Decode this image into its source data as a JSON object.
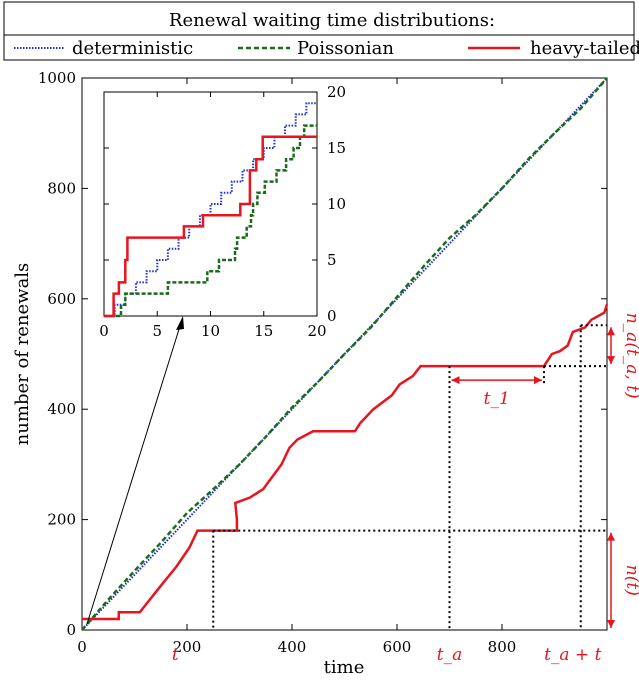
{
  "chart_data": {
    "type": "line",
    "legend": {
      "title": "Renewal waiting time distributions:",
      "placement": "top",
      "entries": [
        {
          "label": "deterministic",
          "color": "#1c2fd6",
          "style": "dotted"
        },
        {
          "label": "Poissonian",
          "color": "#1a6b1a",
          "style": "dashed"
        },
        {
          "label": "heavy-tailed",
          "color": "#e8141e",
          "style": "solid"
        }
      ]
    },
    "main": {
      "xlabel": "time",
      "ylabel": "number of renewals",
      "xlim": [
        0,
        1000
      ],
      "ylim": [
        0,
        1000
      ],
      "xticks": [
        0,
        200,
        400,
        600,
        800
      ],
      "yticks": [
        0,
        200,
        400,
        600,
        800,
        1000
      ],
      "grid": false,
      "series": [
        {
          "name": "deterministic",
          "x": [
            0,
            1000
          ],
          "y": [
            0,
            1000
          ]
        },
        {
          "name": "Poissonian",
          "x": [
            0,
            50,
            100,
            150,
            200,
            250,
            300,
            350,
            400,
            450,
            500,
            550,
            600,
            650,
            700,
            750,
            800,
            850,
            900,
            950,
            1000
          ],
          "y": [
            0,
            55,
            107,
            158,
            212,
            255,
            300,
            350,
            403,
            450,
            500,
            548,
            603,
            658,
            710,
            752,
            800,
            853,
            900,
            945,
            1000
          ]
        },
        {
          "name": "heavy-tailed",
          "steps": [
            [
              0,
              20
            ],
            [
              70,
              20
            ],
            [
              70,
              32
            ],
            [
              110,
              32
            ],
            [
              125,
              50
            ],
            [
              150,
              80
            ],
            [
              180,
              115
            ],
            [
              205,
              150
            ],
            [
              220,
              180
            ],
            [
              295,
              180
            ],
            [
              295,
              200
            ],
            [
              292,
              230
            ],
            [
              320,
              240
            ],
            [
              345,
              255
            ],
            [
              380,
              300
            ],
            [
              395,
              330
            ],
            [
              410,
              345
            ],
            [
              440,
              360
            ],
            [
              520,
              360
            ],
            [
              530,
              375
            ],
            [
              555,
              400
            ],
            [
              590,
              425
            ],
            [
              605,
              445
            ],
            [
              630,
              460
            ],
            [
              645,
              478
            ],
            [
              880,
              478
            ],
            [
              895,
              500
            ],
            [
              910,
              505
            ],
            [
              925,
              515
            ],
            [
              935,
              540
            ],
            [
              958,
              548
            ],
            [
              970,
              562
            ],
            [
              995,
              575
            ],
            [
              1000,
              590
            ]
          ]
        }
      ]
    },
    "annotations": {
      "t": "t",
      "t_a": "t_a",
      "t_a_plus_t": "t_a + t",
      "t1": "t_1",
      "n_t": "n(t)",
      "n_a": "n_a(t_a, t)",
      "t_value": 250,
      "t_a_value": 700,
      "t_a_plus_t_value": 950,
      "n_t_value": 180,
      "n_a_lower": 478,
      "n_a_upper": 552,
      "t1_start": 700,
      "t1_end": 880
    },
    "inset": {
      "xlim": [
        0,
        20
      ],
      "ylim": [
        0,
        20
      ],
      "xticks": [
        0,
        5,
        10,
        15,
        20
      ],
      "yticks": [
        0,
        5,
        10,
        15,
        20
      ],
      "series": [
        {
          "name": "deterministic",
          "steps": [
            [
              0,
              0
            ],
            [
              1,
              0
            ],
            [
              1,
              1
            ],
            [
              2,
              1
            ],
            [
              2,
              2
            ],
            [
              3,
              2
            ],
            [
              3,
              3
            ],
            [
              4,
              3
            ],
            [
              4,
              4
            ],
            [
              5,
              4
            ],
            [
              5,
              5
            ],
            [
              6,
              5
            ],
            [
              6,
              6
            ],
            [
              7,
              6
            ],
            [
              7,
              7
            ],
            [
              8,
              7
            ],
            [
              8,
              8
            ],
            [
              9,
              8
            ],
            [
              9,
              9
            ],
            [
              10,
              9
            ],
            [
              10,
              10
            ],
            [
              11,
              10
            ],
            [
              11,
              11
            ],
            [
              12,
              11
            ],
            [
              12,
              12
            ],
            [
              13,
              12
            ],
            [
              13,
              13
            ],
            [
              14,
              13
            ],
            [
              14,
              14
            ],
            [
              15,
              14
            ],
            [
              15,
              15
            ],
            [
              16,
              15
            ],
            [
              16,
              16
            ],
            [
              17,
              16
            ],
            [
              17,
              17
            ],
            [
              18,
              17
            ],
            [
              18,
              18
            ],
            [
              19,
              18
            ],
            [
              19,
              19
            ],
            [
              20,
              19
            ]
          ]
        },
        {
          "name": "Poissonian",
          "steps": [
            [
              0,
              0
            ],
            [
              1.6,
              0
            ],
            [
              1.6,
              1
            ],
            [
              2.0,
              1
            ],
            [
              2.0,
              2
            ],
            [
              6.0,
              2
            ],
            [
              6.0,
              3
            ],
            [
              9.7,
              3
            ],
            [
              9.7,
              4
            ],
            [
              10.8,
              4
            ],
            [
              10.8,
              5
            ],
            [
              12.3,
              5
            ],
            [
              12.3,
              6
            ],
            [
              12.5,
              6
            ],
            [
              12.5,
              7
            ],
            [
              13.4,
              7
            ],
            [
              13.4,
              8
            ],
            [
              13.8,
              8
            ],
            [
              13.8,
              9
            ],
            [
              14.0,
              9
            ],
            [
              14.0,
              10
            ],
            [
              14.4,
              10
            ],
            [
              14.4,
              11
            ],
            [
              15.1,
              11
            ],
            [
              15.1,
              12
            ],
            [
              16.2,
              12
            ],
            [
              16.2,
              13
            ],
            [
              17.1,
              13
            ],
            [
              17.1,
              14
            ],
            [
              17.8,
              14
            ],
            [
              17.8,
              15
            ],
            [
              18.4,
              15
            ],
            [
              18.4,
              16
            ],
            [
              18.8,
              16
            ],
            [
              18.8,
              17
            ],
            [
              20,
              17
            ]
          ]
        },
        {
          "name": "heavy-tailed",
          "steps": [
            [
              0,
              0
            ],
            [
              0.9,
              0
            ],
            [
              0.9,
              2
            ],
            [
              1.4,
              2
            ],
            [
              1.4,
              3
            ],
            [
              2.0,
              3
            ],
            [
              2.0,
              5
            ],
            [
              2.2,
              5
            ],
            [
              2.2,
              7
            ],
            [
              7.5,
              7
            ],
            [
              7.5,
              8
            ],
            [
              9.3,
              8
            ],
            [
              9.3,
              9
            ],
            [
              12.8,
              9
            ],
            [
              12.8,
              10
            ],
            [
              13.7,
              10
            ],
            [
              13.7,
              13
            ],
            [
              14.3,
              13
            ],
            [
              14.3,
              14
            ],
            [
              14.9,
              14
            ],
            [
              14.9,
              16
            ],
            [
              20,
              16
            ]
          ]
        }
      ]
    }
  }
}
